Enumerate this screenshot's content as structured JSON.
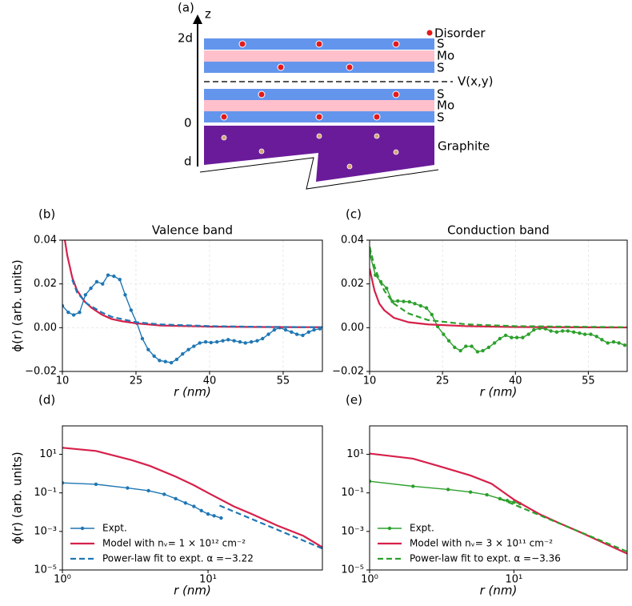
{
  "schematic": {
    "panel_label": "(a)",
    "axis_label": "z",
    "tick_2d": "2d",
    "tick_0": "0",
    "tick_d": "d",
    "disorder": "Disorder",
    "layers": [
      "S",
      "Mo",
      "S",
      "S",
      "Mo",
      "S"
    ],
    "potential": "V(x,y)",
    "substrate": "Graphite"
  },
  "chart_data": [
    {
      "type": "line",
      "panel_label": "(b)",
      "title": "Valence band",
      "xlabel": "r (nm)",
      "ylabel": "ϕ(r) (arb. units)",
      "xlim": [
        10,
        63
      ],
      "ylim": [
        -0.02,
        0.04
      ],
      "xticks": [
        10,
        25,
        40,
        55
      ],
      "yticks": [
        {
          "value": -0.02,
          "label": "−0.02"
        },
        {
          "value": 0,
          "label": "0.00"
        },
        0.02,
        0.04
      ],
      "grid": true,
      "series": [
        {
          "color": "#1f77b4",
          "marker": true,
          "linestyle": "solid",
          "x": [
            10,
            11.2,
            12.3,
            13.5,
            14.7,
            15.8,
            17,
            18.2,
            19.3,
            20.5,
            21.7,
            22.8,
            24,
            25.2,
            26.3,
            27.5,
            28.7,
            29.8,
            31,
            32.2,
            33.3,
            34.5,
            35.7,
            36.8,
            38,
            39.2,
            40.3,
            41.5,
            42.7,
            43.8,
            45,
            46.2,
            47.3,
            48.5,
            49.7,
            50.8,
            52,
            53.2,
            54.3,
            55.5,
            56.7,
            57.8,
            59,
            60.2,
            61.3,
            62.5
          ],
          "values": [
            0.01,
            0.007,
            0.0058,
            0.007,
            0.015,
            0.018,
            0.021,
            0.02,
            0.024,
            0.0235,
            0.022,
            0.015,
            0.008,
            0.002,
            -0.005,
            -0.01,
            -0.013,
            -0.015,
            -0.0155,
            -0.016,
            -0.0145,
            -0.012,
            -0.01,
            -0.0085,
            -0.007,
            -0.0065,
            -0.0068,
            -0.0065,
            -0.006,
            -0.0055,
            -0.006,
            -0.0065,
            -0.007,
            -0.0065,
            -0.006,
            -0.005,
            -0.003,
            -0.001,
            0.0,
            -0.001,
            -0.002,
            -0.003,
            -0.0035,
            -0.002,
            -0.001,
            -0.0005
          ]
        },
        {
          "color": "#d6204a",
          "marker": false,
          "linestyle": "solid",
          "x": [
            10.5,
            11,
            12,
            13,
            14.5,
            16,
            18,
            20,
            22,
            25,
            30,
            40,
            50,
            63
          ],
          "values": [
            0.04,
            0.033,
            0.023,
            0.017,
            0.012,
            0.009,
            0.006,
            0.004,
            0.003,
            0.002,
            0.001,
            0.0005,
            0.0003,
            0.0002
          ]
        },
        {
          "color": "#1f77b4",
          "marker": false,
          "linestyle": "dashed",
          "x": [
            12,
            13,
            15,
            18,
            20,
            25,
            30,
            40,
            50,
            63
          ],
          "values": [
            0.022,
            0.016,
            0.011,
            0.007,
            0.005,
            0.0025,
            0.0015,
            0.0007,
            0.0004,
            0.0002
          ]
        }
      ]
    },
    {
      "type": "line",
      "panel_label": "(c)",
      "title": "Conduction band",
      "xlabel": "r (nm)",
      "xlim": [
        10,
        63
      ],
      "ylim": [
        -0.02,
        0.04
      ],
      "xticks": [
        10,
        25,
        40,
        55
      ],
      "yticks": [
        {
          "value": -0.02,
          "label": "−0.02"
        },
        {
          "value": 0,
          "label": "0.00"
        },
        0.02,
        0.04
      ],
      "grid": true,
      "series": [
        {
          "color": "#2ca02c",
          "marker": true,
          "linestyle": "solid",
          "x": [
            10,
            11.2,
            12.3,
            13.5,
            14.7,
            15.8,
            17,
            18.2,
            19.3,
            20.5,
            21.7,
            22.8,
            24,
            25.2,
            26.3,
            27.5,
            28.7,
            29.8,
            31,
            32.2,
            33.3,
            34.5,
            35.7,
            36.8,
            38,
            39.2,
            40.3,
            41.5,
            42.7,
            43.8,
            45,
            46.2,
            47.3,
            48.5,
            49.7,
            50.8,
            52,
            53.2,
            54.3,
            55.5,
            56.7,
            57.8,
            59,
            60.2,
            61.3,
            62.5
          ],
          "values": [
            0.034,
            0.024,
            0.021,
            0.018,
            0.012,
            0.0122,
            0.012,
            0.0118,
            0.011,
            0.01,
            0.009,
            0.006,
            0.0005,
            -0.003,
            -0.006,
            -0.009,
            -0.0105,
            -0.0085,
            -0.0085,
            -0.011,
            -0.0105,
            -0.009,
            -0.007,
            -0.005,
            -0.0035,
            -0.0045,
            -0.0045,
            -0.0045,
            -0.003,
            -0.001,
            -0.0003,
            -0.0005,
            -0.0015,
            -0.002,
            -0.0015,
            -0.0015,
            -0.002,
            -0.0025,
            -0.003,
            -0.003,
            -0.004,
            -0.0055,
            -0.007,
            -0.0065,
            -0.007,
            -0.008
          ]
        },
        {
          "color": "#d6204a",
          "marker": false,
          "linestyle": "solid",
          "x": [
            10,
            11,
            12,
            13,
            15,
            18,
            22,
            30,
            40,
            63
          ],
          "values": [
            0.027,
            0.017,
            0.011,
            0.008,
            0.0045,
            0.0025,
            0.0015,
            0.0007,
            0.0003,
            0.0001
          ]
        },
        {
          "color": "#2ca02c",
          "marker": false,
          "linestyle": "dashed",
          "x": [
            10,
            11,
            12,
            13,
            15,
            18,
            22,
            30,
            40,
            63
          ],
          "values": [
            0.037,
            0.028,
            0.022,
            0.017,
            0.011,
            0.0065,
            0.0035,
            0.0015,
            0.0007,
            0.0002
          ]
        }
      ]
    },
    {
      "type": "line",
      "panel_label": "(d)",
      "xlabel": "r (nm)",
      "ylabel": "ϕ(r) (arb. units)",
      "log_x": true,
      "log_y": true,
      "xlim": [
        1,
        61
      ],
      "ylim": [
        1e-05,
        300
      ],
      "xticks": [
        {
          "value": 1,
          "label": "10⁰"
        },
        {
          "value": 10,
          "label": "10¹"
        }
      ],
      "yticks": [
        {
          "value": 1e-05,
          "label": "10⁻⁵"
        },
        {
          "value": 0.001,
          "label": "10⁻³"
        },
        {
          "value": 0.1,
          "label": "10⁻¹"
        },
        {
          "value": 10,
          "label": "10¹"
        }
      ],
      "grid": false,
      "legend": "lower left",
      "series": [
        {
          "name": "Expt.",
          "color": "#1f77b4",
          "marker": true,
          "linestyle": "solid",
          "x": [
            1,
            1.7,
            2.8,
            3.9,
            5,
            6,
            7,
            8,
            9,
            10,
            11,
            12.3
          ],
          "values": [
            0.33,
            0.28,
            0.18,
            0.13,
            0.085,
            0.05,
            0.03,
            0.02,
            0.012,
            0.008,
            0.0065,
            0.005
          ]
        },
        {
          "name": "Model with nᵥ= 1 × 10¹² cm⁻²",
          "color": "#d6204a",
          "marker": false,
          "linestyle": "solid",
          "x": [
            1,
            1.7,
            3,
            4,
            6,
            8,
            10,
            15,
            20,
            30,
            45,
            61
          ],
          "values": [
            22,
            15,
            5,
            2.5,
            0.7,
            0.25,
            0.1,
            0.02,
            0.008,
            0.002,
            0.0006,
            0.00015
          ]
        },
        {
          "name": "Power-law fit to expt. α =−3.22",
          "color": "#1f77b4",
          "marker": false,
          "linestyle": "dashed",
          "x": [
            12,
            61
          ],
          "values": [
            0.022,
            0.00013
          ]
        }
      ]
    },
    {
      "type": "line",
      "panel_label": "(e)",
      "xlabel": "r (nm)",
      "log_x": true,
      "log_y": true,
      "xlim": [
        1,
        61
      ],
      "ylim": [
        1e-05,
        300
      ],
      "xticks": [
        {
          "value": 1,
          "label": "10⁰"
        },
        {
          "value": 10,
          "label": "10¹"
        }
      ],
      "yticks": [
        {
          "value": 1e-05,
          "label": "10⁻⁵"
        },
        {
          "value": 0.001,
          "label": "10⁻³"
        },
        {
          "value": 0.1,
          "label": "10⁻¹"
        },
        {
          "value": 10,
          "label": "10¹"
        }
      ],
      "grid": false,
      "legend": "lower left",
      "series": [
        {
          "name": "Expt.",
          "color": "#2ca02c",
          "marker": true,
          "linestyle": "solid",
          "x": [
            1,
            2,
            3.5,
            5,
            6.5,
            8,
            9,
            10,
            11
          ],
          "values": [
            0.4,
            0.22,
            0.15,
            0.11,
            0.08,
            0.05,
            0.04,
            0.033,
            0.028
          ]
        },
        {
          "name": "Model with nᵥ= 3 × 10¹¹ cm⁻²",
          "color": "#d6204a",
          "marker": false,
          "linestyle": "solid",
          "x": [
            1,
            2,
            3,
            5,
            7,
            10,
            15,
            20,
            30,
            61
          ],
          "values": [
            11,
            6,
            2.5,
            0.8,
            0.3,
            0.045,
            0.008,
            0.003,
            0.0008,
            7e-05
          ]
        },
        {
          "name": "Power-law fit to expt. α =−3.36",
          "color": "#2ca02c",
          "marker": false,
          "linestyle": "dashed",
          "x": [
            8,
            61
          ],
          "values": [
            0.05,
            9e-05
          ]
        }
      ]
    }
  ]
}
